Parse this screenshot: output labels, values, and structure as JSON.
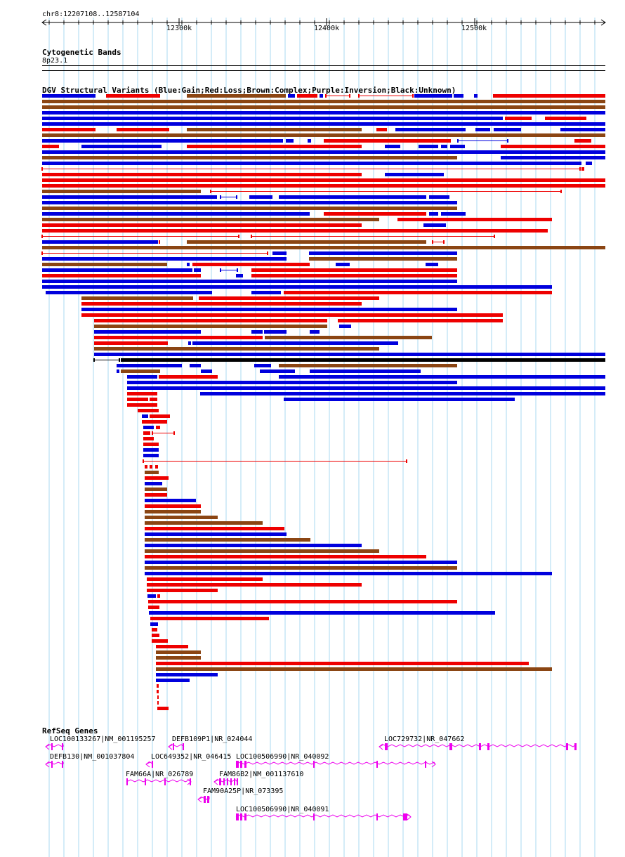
{
  "ruler": {
    "coordinates": "chr8:12207108..12587104",
    "ticks": [
      "12300k",
      "12400k",
      "12500k"
    ]
  },
  "tracks": {
    "cytoband": {
      "title": "Cytogenetic Bands",
      "band": "8p23.1"
    },
    "dgv": {
      "title": "DGV Structural Variants (Blue:Gain;Red:Loss;Brown:Complex;Purple:Inversion;Black:Unknown)"
    },
    "refseq": {
      "title": "RefSeq Genes",
      "genes": [
        {
          "name": "LOC100133267|NM_001195257"
        },
        {
          "name": "DEFB109P1|NR_024044"
        },
        {
          "name": "LOC729732|NR_047662"
        },
        {
          "name": "DEFB130|NM_001037804"
        },
        {
          "name": "LOC649352|NR_046415"
        },
        {
          "name": "LOC100506990|NR_040092"
        },
        {
          "name": "FAM66A|NR_026789"
        },
        {
          "name": "FAM86B2|NM_001137610"
        },
        {
          "name": "FAM90A25P|NR_073395"
        },
        {
          "name": "LOC100506990|NR_040091"
        }
      ]
    }
  },
  "colors": {
    "gain": "#0000dd",
    "loss": "#ee0000",
    "complex": "#8b4513",
    "inversion": "#800080",
    "unknown": "#000000",
    "gene": "#ee00ee",
    "grid": "#a8d8f0"
  }
}
